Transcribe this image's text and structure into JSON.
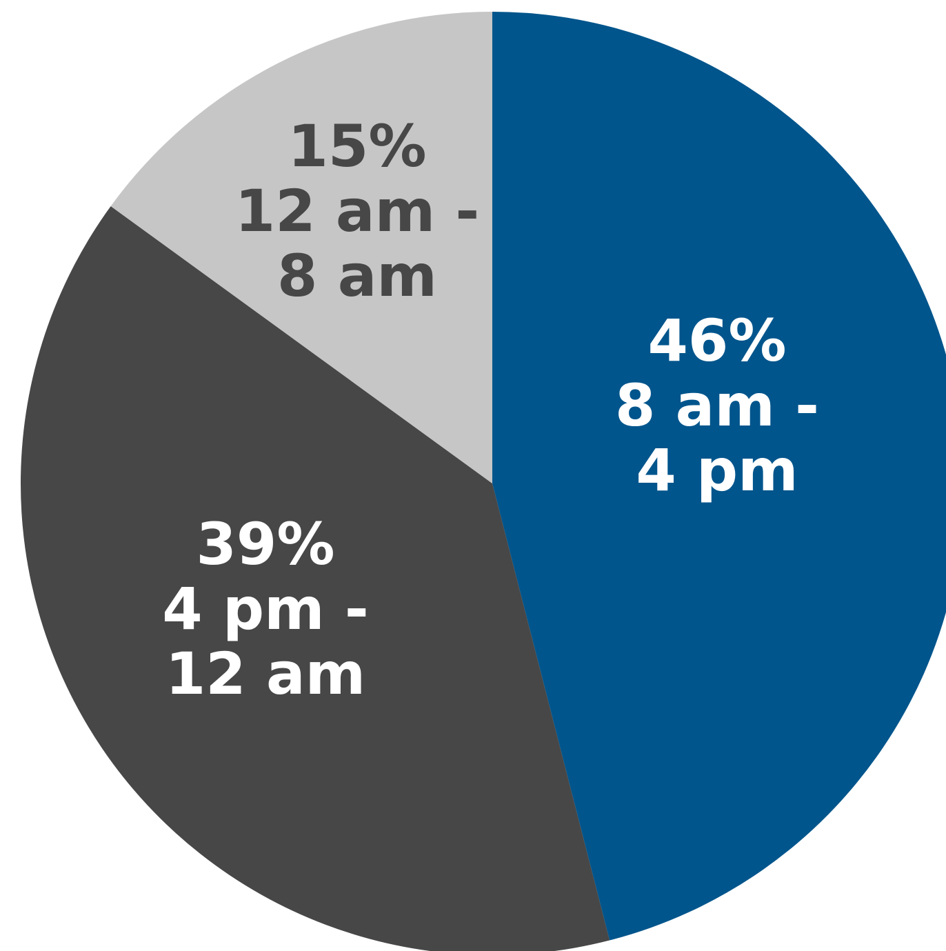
{
  "chart_data": {
    "type": "pie",
    "slices": [
      {
        "label": "8 am - 4 pm",
        "value": 46,
        "percent_label": "46%",
        "label_lines": [
          "8 am -",
          "4 pm"
        ],
        "color": "#00558C",
        "text_color": "#FFFFFF"
      },
      {
        "label": "4 pm - 12 am",
        "value": 39,
        "percent_label": "39%",
        "label_lines": [
          "4 pm -",
          "12 am"
        ],
        "color": "#474747",
        "text_color": "#FFFFFF"
      },
      {
        "label": "12 am - 8 am",
        "value": 15,
        "percent_label": "15%",
        "label_lines": [
          "12 am -",
          "8 am"
        ],
        "color": "#C6C6C6",
        "text_color": "#474747"
      }
    ],
    "start": "12 o'clock",
    "direction": "clockwise",
    "legend": "none"
  }
}
